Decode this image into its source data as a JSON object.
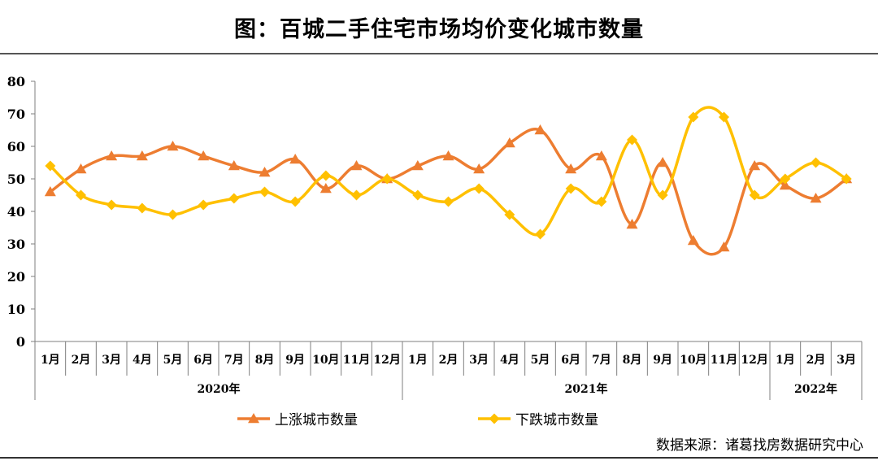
{
  "title": "图：百城二手住宅市场均价变化城市数量",
  "source": "数据来源：诸葛找房数据研究中心",
  "colors": {
    "rise": "#ED7D31",
    "fall": "#FFC000",
    "axis": "#7f7f7f"
  },
  "chart_data": {
    "type": "line",
    "title": "图：百城二手住宅市场均价变化城市数量",
    "ylim": [
      0,
      80
    ],
    "yticks": [
      0,
      10,
      20,
      30,
      40,
      50,
      60,
      70,
      80
    ],
    "categories": [
      "1月",
      "2月",
      "3月",
      "4月",
      "5月",
      "6月",
      "7月",
      "8月",
      "9月",
      "10月",
      "11月",
      "12月",
      "1月",
      "2月",
      "3月",
      "4月",
      "5月",
      "6月",
      "7月",
      "8月",
      "9月",
      "10月",
      "11月",
      "12月",
      "1月",
      "2月",
      "3月"
    ],
    "year_groups": [
      {
        "label": "2020年",
        "count": 12
      },
      {
        "label": "2021年",
        "count": 12
      },
      {
        "label": "2022年",
        "count": 3
      }
    ],
    "legend_position": "bottom",
    "series": [
      {
        "name": "上涨城市数量",
        "marker": "triangle",
        "values": [
          46,
          53,
          57,
          57,
          60,
          57,
          54,
          52,
          56,
          47,
          54,
          50,
          54,
          57,
          53,
          61,
          65,
          53,
          57,
          36,
          55,
          31,
          29,
          54,
          48,
          44,
          50
        ]
      },
      {
        "name": "下跌城市数量",
        "marker": "diamond",
        "values": [
          54,
          45,
          42,
          41,
          39,
          42,
          44,
          46,
          43,
          51,
          45,
          50,
          45,
          43,
          47,
          39,
          33,
          47,
          43,
          62,
          45,
          69,
          69,
          45,
          50,
          55,
          50
        ]
      }
    ]
  }
}
